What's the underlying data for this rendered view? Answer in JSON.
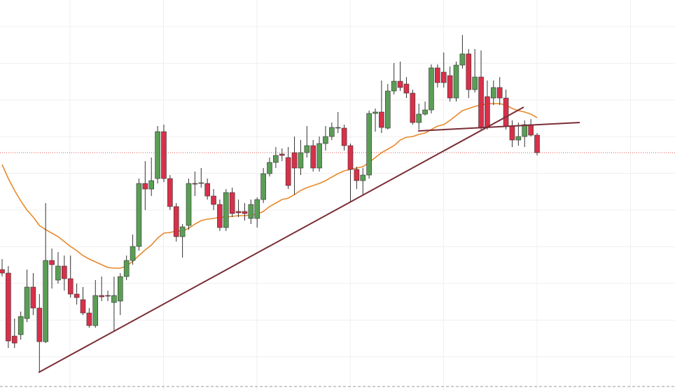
{
  "chart_data": {
    "type": "candlestick",
    "open": [
      215,
      210,
      120,
      122,
      145,
      190,
      160,
      112,
      228,
      200,
      220,
      202,
      180,
      172,
      153,
      135,
      178,
      178,
      168,
      170,
      205,
      228,
      248,
      338,
      330,
      345,
      412,
      345,
      305,
      262,
      278,
      338,
      338,
      338,
      320,
      308,
      275,
      325,
      298,
      298,
      288,
      288,
      315,
      352,
      368,
      380,
      375,
      382,
      360,
      382,
      392,
      360,
      395,
      405,
      417,
      417,
      392,
      358,
      342,
      350,
      438,
      440,
      417,
      470,
      484,
      480,
      467,
      425,
      437,
      443,
      503,
      497,
      492,
      460,
      507,
      523,
      472,
      490,
      462,
      460,
      475,
      460,
      420,
      400,
      405,
      422,
      407
    ],
    "high": [
      230,
      220,
      145,
      155,
      215,
      210,
      180,
      310,
      245,
      240,
      235,
      235,
      195,
      190,
      160,
      200,
      205,
      185,
      205,
      210,
      235,
      265,
      345,
      370,
      375,
      420,
      422,
      350,
      310,
      280,
      345,
      355,
      360,
      345,
      330,
      315,
      330,
      332,
      315,
      310,
      315,
      318,
      360,
      375,
      390,
      388,
      390,
      405,
      400,
      420,
      400,
      405,
      420,
      425,
      440,
      422,
      395,
      362,
      360,
      442,
      445,
      485,
      480,
      510,
      512,
      490,
      472,
      452,
      455,
      508,
      508,
      525,
      505,
      512,
      550,
      530,
      530,
      528,
      485,
      485,
      490,
      472,
      428,
      425,
      428,
      430,
      410
    ],
    "low": [
      205,
      103,
      103,
      115,
      140,
      150,
      68,
      110,
      188,
      195,
      185,
      175,
      165,
      150,
      132,
      132,
      170,
      170,
      126,
      150,
      200,
      222,
      242,
      300,
      320,
      338,
      340,
      300,
      255,
      232,
      272,
      320,
      332,
      315,
      300,
      270,
      270,
      290,
      290,
      285,
      280,
      275,
      310,
      348,
      360,
      370,
      330,
      322,
      350,
      375,
      355,
      355,
      385,
      400,
      410,
      385,
      312,
      330,
      322,
      345,
      412,
      410,
      415,
      465,
      470,
      460,
      422,
      415,
      435,
      438,
      475,
      475,
      455,
      455,
      502,
      460,
      468,
      415,
      415,
      450,
      450,
      415,
      390,
      392,
      390,
      405,
      378
    ],
    "close": [
      210,
      113,
      110,
      148,
      190,
      160,
      112,
      228,
      222,
      220,
      202,
      180,
      175,
      153,
      135,
      178,
      176,
      177,
      178,
      205,
      228,
      248,
      338,
      330,
      342,
      412,
      345,
      305,
      262,
      276,
      338,
      337,
      339,
      320,
      308,
      275,
      325,
      295,
      296,
      295,
      308,
      315,
      352,
      368,
      378,
      378,
      335,
      360,
      382,
      392,
      360,
      395,
      405,
      418,
      418,
      392,
      358,
      342,
      350,
      438,
      440,
      418,
      470,
      484,
      475,
      467,
      425,
      437,
      443,
      503,
      482,
      482,
      460,
      507,
      523,
      472,
      490,
      418,
      418,
      475,
      460,
      420,
      400,
      405,
      422,
      407,
      382
    ],
    "up_color": "#5a9e55",
    "down_color": "#d93049",
    "moving_average": {
      "color": "#e8892b",
      "values": [
        365,
        345,
        328,
        313,
        300,
        290,
        278,
        272,
        267,
        262,
        255,
        248,
        242,
        235,
        230,
        226,
        222,
        218,
        217,
        217,
        220,
        227,
        235,
        243,
        250,
        260,
        267,
        268,
        270,
        270,
        274,
        280,
        285,
        287,
        288,
        290,
        290,
        291,
        292,
        292,
        293,
        294,
        298,
        305,
        310,
        315,
        317,
        322,
        328,
        332,
        335,
        338,
        342,
        347,
        352,
        356,
        358,
        360,
        362,
        368,
        375,
        382,
        387,
        392,
        400,
        404,
        405,
        408,
        410,
        415,
        420,
        422,
        428,
        435,
        442,
        445,
        448,
        450,
        452,
        452,
        452,
        450,
        445,
        442,
        440,
        437,
        432
      ]
    },
    "ylim": [
      43,
      600
    ],
    "grid": true
  }
}
